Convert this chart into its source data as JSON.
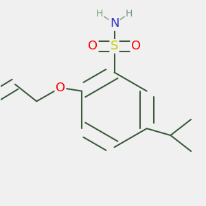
{
  "background_color": "#f0f0f0",
  "bond_color": "#3a5a3a",
  "bond_width": 1.5,
  "atom_colors": {
    "S": "#cccc00",
    "O": "#ff0000",
    "N": "#3333cc",
    "H": "#7a9a7a",
    "C": "#3a5a3a"
  },
  "figsize": [
    3.0,
    3.0
  ],
  "dpi": 100
}
